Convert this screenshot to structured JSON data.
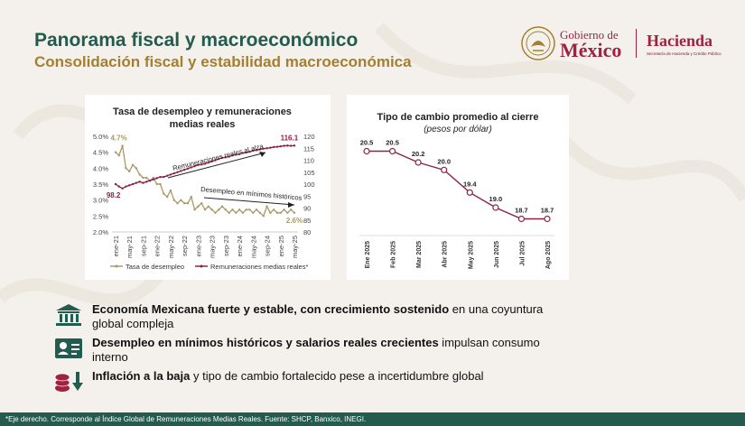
{
  "header": {
    "title": "Panorama fiscal y macroeconómico",
    "subtitle": "Consolidación fiscal y estabilidad macroeconómica"
  },
  "logo": {
    "gobierno_line1": "Gobierno de",
    "gobierno_line2": "México",
    "hacienda": "Hacienda",
    "hacienda_sub": "Secretaría de Hacienda y Crédito Público"
  },
  "chart_data": [
    {
      "type": "line",
      "title": "Tasa de desempleo y remuneraciones medias reales",
      "x_ticks": [
        "ene-21",
        "may-21",
        "sep-21",
        "ene-22",
        "may-22",
        "sep-22",
        "ene-23",
        "may-23",
        "sep-23",
        "ene-24",
        "may-24",
        "sep-24",
        "ene-25",
        "may-25"
      ],
      "y_left_ticks": [
        "5.0%",
        "4.5%",
        "4.0%",
        "3.5%",
        "3.0%",
        "2.5%",
        "2.0%"
      ],
      "y_left_range": [
        2.0,
        5.0
      ],
      "y_right_ticks": [
        "120",
        "115",
        "110",
        "105",
        "100",
        "95",
        "90",
        "85",
        "80"
      ],
      "y_right_range": [
        80,
        120
      ],
      "series": [
        {
          "name": "Tasa de desempleo",
          "axis": "left",
          "color": "#a8986a",
          "values": [
            4.5,
            4.4,
            4.7,
            4.0,
            3.9,
            4.1,
            4.0,
            3.8,
            3.7,
            3.7,
            3.6,
            3.7,
            3.5,
            3.5,
            3.2,
            3.1,
            3.3,
            3.0,
            2.9,
            3.0,
            2.9,
            2.9,
            3.1,
            2.7,
            2.8,
            2.9,
            2.7,
            2.8,
            2.7,
            2.6,
            2.7,
            2.8,
            2.7,
            2.6,
            2.7,
            2.6,
            2.7,
            2.6,
            2.7,
            2.7,
            2.6,
            2.7,
            2.6,
            2.5,
            2.8,
            2.6,
            2.7,
            2.6,
            2.6,
            2.7,
            2.6,
            2.7,
            2.6
          ]
        },
        {
          "name": "Remuneraciones medias reales*",
          "axis": "right",
          "color": "#8b2346",
          "values": [
            100,
            99,
            98.2,
            99,
            99.5,
            100,
            100.5,
            101,
            100.5,
            101,
            101.5,
            102,
            102.5,
            103,
            103,
            103.5,
            104,
            104.5,
            105,
            105.5,
            106,
            106.5,
            107,
            107.5,
            108,
            108.2,
            108.5,
            109,
            109.5,
            110,
            110.5,
            111,
            111.2,
            111.5,
            112,
            112.3,
            112.5,
            113,
            113.2,
            113.5,
            114,
            114.2,
            114.5,
            114.8,
            115,
            115.2,
            115.5,
            115.6,
            115.8,
            116,
            116.1,
            116,
            116.1
          ]
        }
      ],
      "data_labels": [
        {
          "text": "4.7%"
        },
        {
          "text": "98.2"
        },
        {
          "text": "116.1"
        },
        {
          "text": "2.6%"
        }
      ],
      "annotations": [
        "Remuneraciones reales al alza",
        "Desempleo en mínimos históricos"
      ],
      "legend_position": "bottom"
    },
    {
      "type": "line",
      "title": "Tipo de cambio promedio al cierre",
      "subtitle": "(pesos por dólar)",
      "categories": [
        "Ene 2025",
        "Feb 2025",
        "Mar 2025",
        "Abr 2025",
        "May 2025",
        "Jun 2025",
        "Jul 2025",
        "Ago 2025"
      ],
      "values": [
        20.5,
        20.5,
        20.2,
        20.0,
        19.4,
        19.0,
        18.7,
        18.7
      ],
      "value_labels": [
        "20.5",
        "20.5",
        "20.2",
        "20.0",
        "19.4",
        "19.0",
        "18.7",
        "18.7"
      ],
      "y_range": [
        18.4,
        20.8
      ],
      "color": "#8b2346",
      "grid": false
    }
  ],
  "bullets": [
    {
      "icon": "bank-icon",
      "bold": "Economía Mexicana fuerte y estable, con crecimiento sostenido",
      "rest": " en una coyuntura global compleja"
    },
    {
      "icon": "id-card-icon",
      "bold": "Desempleo en mínimos históricos y salarios reales crecientes",
      "rest": " impulsan consumo interno"
    },
    {
      "icon": "coins-down-icon",
      "bold": "Inflación a la baja",
      "rest": " y tipo de cambio fortalecido pese a incertidumbre global"
    }
  ],
  "footer": {
    "note": "*Eje derecho. Corresponde al Índice Global de Remuneraciones Medias Reales. Fuente: SHCP, Banxico, INEGI."
  },
  "colors": {
    "green": "#235b4e",
    "gold": "#a57f2c",
    "guinda": "#9f2241"
  }
}
